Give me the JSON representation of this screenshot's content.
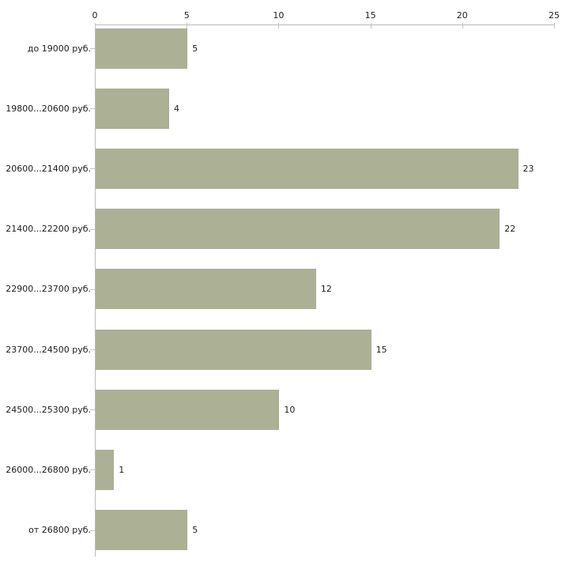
{
  "chart_data": {
    "type": "bar",
    "orientation": "horizontal",
    "title": "",
    "xlabel": "",
    "ylabel": "",
    "categories": [
      "до 19000 руб.",
      "19800...20600 руб.",
      "20600...21400 руб.",
      "21400...22200 руб.",
      "22900...23700 руб.",
      "23700...24500 руб.",
      "24500...25300 руб.",
      "26000...26800 руб.",
      "от 26800 руб."
    ],
    "values": [
      5,
      4,
      23,
      22,
      12,
      15,
      10,
      1,
      5
    ],
    "value_labels": [
      "5",
      "4",
      "23",
      "22",
      "12",
      "15",
      "10",
      "1",
      "5"
    ],
    "x_ticks": [
      0,
      5,
      10,
      15,
      20,
      25
    ],
    "xlim": [
      0,
      25
    ],
    "x_axis_position": "top",
    "grid": false,
    "legend": null,
    "colors": {
      "bar_fill": "#acb095",
      "axis_line": "#bbbbbb",
      "tick_mark": "#c5c8b0",
      "text": "#1c1c1c",
      "background": "#ffffff"
    }
  }
}
